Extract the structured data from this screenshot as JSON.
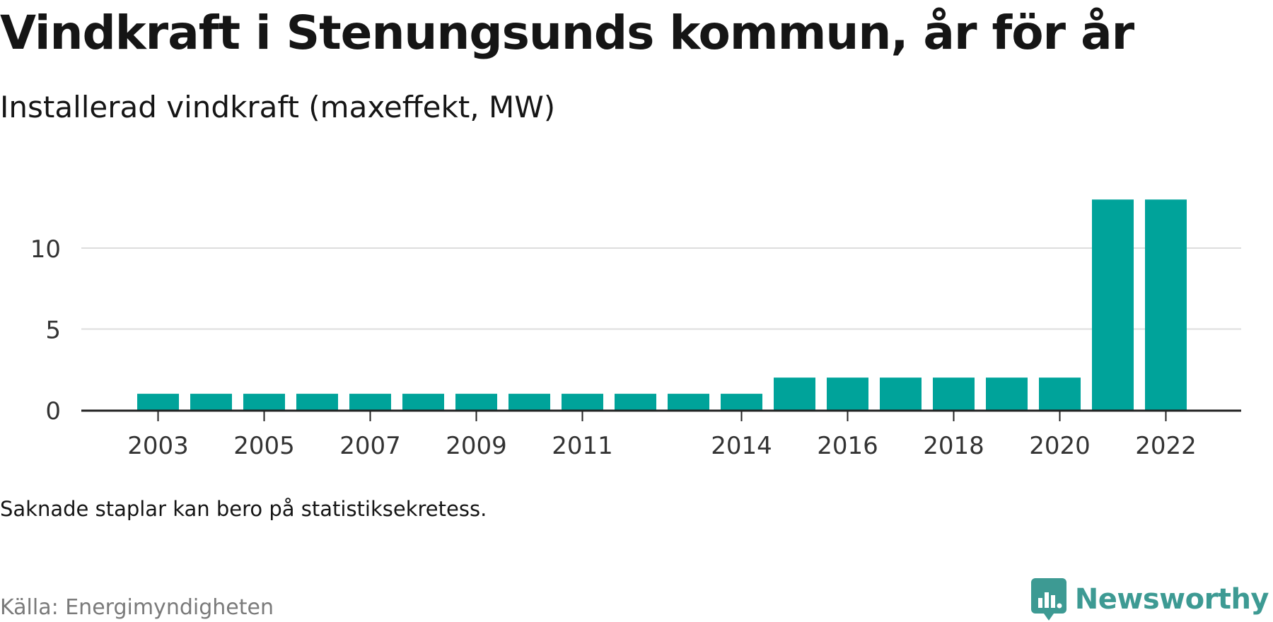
{
  "title": "Vindkraft i Stenungsunds kommun, år för år",
  "subtitle": "Installerad vindkraft (maxeffekt, MW)",
  "note": "Saknade staplar kan bero på statistiksekretess.",
  "source": "Källa: Energimyndigheten",
  "brand": {
    "name": "Newsworthy",
    "logo_icon": "newsworthy-logo-icon",
    "color": "#3d9a93"
  },
  "colors": {
    "bar": "#00a39a",
    "grid": "#dddddd",
    "axis": "#222222",
    "text": "#151515"
  },
  "chart_data": {
    "type": "bar",
    "title": "Vindkraft i Stenungsunds kommun, år för år",
    "subtitle": "Installerad vindkraft (maxeffekt, MW)",
    "xlabel": "",
    "ylabel": "",
    "categories": [
      2003,
      2004,
      2005,
      2006,
      2007,
      2008,
      2009,
      2010,
      2011,
      2012,
      2013,
      2014,
      2015,
      2016,
      2017,
      2018,
      2019,
      2020,
      2021,
      2022
    ],
    "values": [
      1,
      1,
      1,
      1,
      1,
      1,
      1,
      1,
      1,
      1,
      1,
      1,
      2,
      2,
      2,
      2,
      2,
      2,
      13,
      13
    ],
    "x_tick_labels": [
      "2003",
      "2005",
      "2007",
      "2009",
      "2011",
      "2014",
      "2016",
      "2018",
      "2020",
      "2022"
    ],
    "y_ticks": [
      0,
      5,
      10
    ],
    "y_tick_labels": [
      "0",
      "5",
      "10"
    ],
    "ylim": [
      0,
      13
    ],
    "grid": true,
    "legend": "none"
  }
}
